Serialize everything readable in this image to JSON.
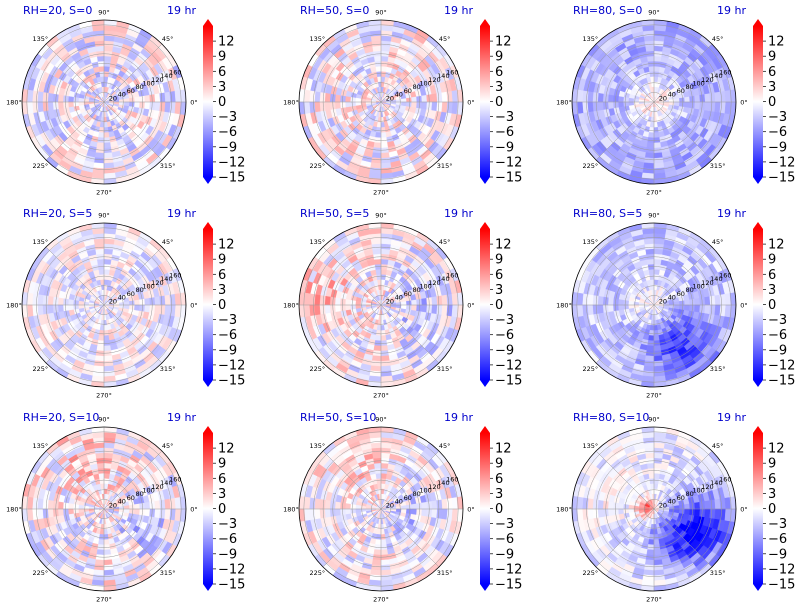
{
  "figure": {
    "colormap": "bwr",
    "colors": {
      "negative": "#0000ff",
      "zero": "#ffffff",
      "positive": "#ff0000",
      "title": "#0000cc",
      "grid": "#9a9a9a"
    }
  },
  "chart_data": [
    {
      "type": "heatmap",
      "subtype": "polar",
      "title": "RH=20, S=0",
      "time_label": "19 hr",
      "theta_ticks": [
        "0°",
        "45°",
        "90°",
        "135°",
        "180°",
        "225°",
        "270°",
        "315°"
      ],
      "r_ticks": [
        "20",
        "40",
        "60",
        "80",
        "100",
        "120",
        "140",
        "160"
      ],
      "rmax": 170,
      "colorbar": {
        "ticks": [
          "12",
          "9",
          "6",
          "3",
          "0",
          "−3",
          "−6",
          "−9",
          "−12",
          "−15"
        ],
        "vmin": -15,
        "vmax": 15,
        "extend": "both"
      },
      "pattern": {
        "amplitude": 5,
        "bias": -0.5,
        "center": [
          0,
          0
        ],
        "blobs": []
      }
    },
    {
      "type": "heatmap",
      "subtype": "polar",
      "title": "RH=50, S=0",
      "time_label": "19 hr",
      "theta_ticks": [
        "0°",
        "45°",
        "90°",
        "135°",
        "180°",
        "225°",
        "270°",
        "315°"
      ],
      "r_ticks": [
        "20",
        "40",
        "60",
        "80",
        "100",
        "120",
        "140",
        "160"
      ],
      "rmax": 170,
      "colorbar": {
        "ticks": [
          "12",
          "9",
          "6",
          "3",
          "0",
          "−3",
          "−6",
          "−9",
          "−12",
          "−15"
        ],
        "vmin": -15,
        "vmax": 15,
        "extend": "both"
      },
      "pattern": {
        "amplitude": 5,
        "bias": 0,
        "center": [
          0,
          0
        ],
        "blobs": []
      }
    },
    {
      "type": "heatmap",
      "subtype": "polar",
      "title": "RH=80, S=0",
      "time_label": "19 hr",
      "theta_ticks": [
        "0°",
        "45°",
        "90°",
        "135°",
        "180°",
        "225°",
        "270°",
        "315°"
      ],
      "r_ticks": [
        "20",
        "40",
        "60",
        "80",
        "100",
        "120",
        "140",
        "160"
      ],
      "rmax": 170,
      "colorbar": {
        "ticks": [
          "12",
          "9",
          "6",
          "3",
          "0",
          "−3",
          "−6",
          "−9",
          "−12",
          "−15"
        ],
        "vmin": -15,
        "vmax": 15,
        "extend": "both"
      },
      "pattern": {
        "amplitude": 3,
        "bias": -4.5,
        "center": [
          0,
          0
        ],
        "blobs": [
          {
            "r": 0,
            "theta": 0,
            "s": 35,
            "a": 6
          }
        ]
      }
    },
    {
      "type": "heatmap",
      "subtype": "polar",
      "title": "RH=20, S=5",
      "time_label": "19 hr",
      "theta_ticks": [
        "0°",
        "45°",
        "90°",
        "135°",
        "180°",
        "225°",
        "270°",
        "315°"
      ],
      "r_ticks": [
        "20",
        "40",
        "60",
        "80",
        "100",
        "120",
        "140",
        "160"
      ],
      "rmax": 170,
      "colorbar": {
        "ticks": [
          "12",
          "9",
          "6",
          "3",
          "0",
          "−3",
          "−6",
          "−9",
          "−12",
          "−15"
        ],
        "vmin": -15,
        "vmax": 15,
        "extend": "both"
      },
      "pattern": {
        "amplitude": 4,
        "bias": -0.5,
        "center": [
          0,
          0
        ],
        "blobs": []
      }
    },
    {
      "type": "heatmap",
      "subtype": "polar",
      "title": "RH=50, S=5",
      "time_label": "19 hr",
      "theta_ticks": [
        "0°",
        "45°",
        "90°",
        "135°",
        "180°",
        "225°",
        "270°",
        "315°"
      ],
      "r_ticks": [
        "20",
        "40",
        "60",
        "80",
        "100",
        "120",
        "140",
        "160"
      ],
      "rmax": 170,
      "colorbar": {
        "ticks": [
          "12",
          "9",
          "6",
          "3",
          "0",
          "−3",
          "−6",
          "−9",
          "−12",
          "−15"
        ],
        "vmin": -15,
        "vmax": 15,
        "extend": "both"
      },
      "pattern": {
        "amplitude": 5,
        "bias": 0,
        "center": [
          0,
          0
        ],
        "blobs": [
          {
            "r": 120,
            "theta": 170,
            "s": 55,
            "a": 3
          },
          {
            "r": 100,
            "theta": -20,
            "s": 45,
            "a": -3
          }
        ]
      }
    },
    {
      "type": "heatmap",
      "subtype": "polar",
      "title": "RH=80, S=5",
      "time_label": "19 hr",
      "theta_ticks": [
        "0°",
        "45°",
        "90°",
        "135°",
        "180°",
        "225°",
        "270°",
        "315°"
      ],
      "r_ticks": [
        "20",
        "40",
        "60",
        "80",
        "100",
        "120",
        "140",
        "160"
      ],
      "rmax": 170,
      "colorbar": {
        "ticks": [
          "12",
          "9",
          "6",
          "3",
          "0",
          "−3",
          "−6",
          "−9",
          "−12",
          "−15"
        ],
        "vmin": -15,
        "vmax": 15,
        "extend": "both"
      },
      "pattern": {
        "amplitude": 3,
        "bias": -3,
        "center": [
          0,
          0
        ],
        "blobs": [
          {
            "r": 100,
            "theta": -55,
            "s": 50,
            "a": -8
          },
          {
            "r": 0,
            "theta": 0,
            "s": 30,
            "a": 4
          }
        ]
      }
    },
    {
      "type": "heatmap",
      "subtype": "polar",
      "title": "RH=20, S=10",
      "time_label": "19 hr",
      "theta_ticks": [
        "0°",
        "45°",
        "90°",
        "135°",
        "180°",
        "225°",
        "270°",
        "315°"
      ],
      "r_ticks": [
        "20",
        "40",
        "60",
        "80",
        "100",
        "120",
        "140",
        "160"
      ],
      "rmax": 170,
      "colorbar": {
        "ticks": [
          "12",
          "9",
          "6",
          "3",
          "0",
          "−3",
          "−6",
          "−9",
          "−12",
          "−15"
        ],
        "vmin": -15,
        "vmax": 15,
        "extend": "both"
      },
      "pattern": {
        "amplitude": 5,
        "bias": 0,
        "center": [
          0,
          0
        ],
        "blobs": [
          {
            "r": 100,
            "theta": 110,
            "s": 50,
            "a": 3
          },
          {
            "r": 90,
            "theta": -20,
            "s": 40,
            "a": -3
          }
        ]
      }
    },
    {
      "type": "heatmap",
      "subtype": "polar",
      "title": "RH=50, S=10",
      "time_label": "19 hr",
      "theta_ticks": [
        "0°",
        "45°",
        "90°",
        "135°",
        "180°",
        "225°",
        "270°",
        "315°"
      ],
      "r_ticks": [
        "20",
        "40",
        "60",
        "80",
        "100",
        "120",
        "140",
        "160"
      ],
      "rmax": 170,
      "colorbar": {
        "ticks": [
          "12",
          "9",
          "6",
          "3",
          "0",
          "−3",
          "−6",
          "−9",
          "−12",
          "−15"
        ],
        "vmin": -15,
        "vmax": 15,
        "extend": "both"
      },
      "pattern": {
        "amplitude": 4.5,
        "bias": 0,
        "center": [
          0,
          0
        ],
        "blobs": [
          {
            "r": 110,
            "theta": 120,
            "s": 55,
            "a": 2.5
          },
          {
            "r": 70,
            "theta": -10,
            "s": 40,
            "a": -3
          }
        ]
      }
    },
    {
      "type": "heatmap",
      "subtype": "polar",
      "title": "RH=80, S=10",
      "time_label": "19 hr",
      "theta_ticks": [
        "0°",
        "45°",
        "90°",
        "135°",
        "180°",
        "225°",
        "270°",
        "315°"
      ],
      "r_ticks": [
        "20",
        "40",
        "60",
        "80",
        "100",
        "120",
        "140",
        "160"
      ],
      "rmax": 170,
      "colorbar": {
        "ticks": [
          "12",
          "9",
          "6",
          "3",
          "0",
          "−3",
          "−6",
          "−9",
          "−12",
          "−15"
        ],
        "vmin": -15,
        "vmax": 15,
        "extend": "both"
      },
      "pattern": {
        "amplitude": 3,
        "bias": -1.5,
        "center": [
          0,
          0
        ],
        "blobs": [
          {
            "r": 110,
            "theta": -20,
            "s": 45,
            "a": -12
          },
          {
            "r": 80,
            "theta": -60,
            "s": 40,
            "a": -6
          },
          {
            "r": 15,
            "theta": 175,
            "s": 14,
            "a": 12
          },
          {
            "r": 100,
            "theta": 150,
            "s": 45,
            "a": 2
          }
        ]
      }
    }
  ]
}
